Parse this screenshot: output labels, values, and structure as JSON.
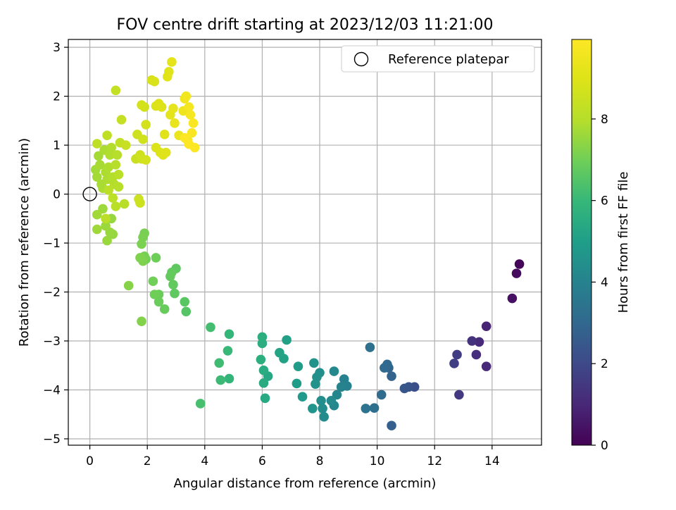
{
  "chart_data": {
    "type": "scatter",
    "title": "FOV centre drift starting at 2023/12/03 11:21:00",
    "xlabel": "Angular distance from reference (arcmin)",
    "ylabel": "Rotation from reference (arcmin)",
    "xlim": [
      -0.75,
      15.72
    ],
    "ylim": [
      -5.13,
      3.16
    ],
    "xticks": [
      "0",
      "2",
      "4",
      "6",
      "8",
      "10",
      "12",
      "14"
    ],
    "yticks": [
      "−5",
      "−4",
      "−3",
      "−2",
      "−1",
      "0",
      "1",
      "2",
      "3"
    ],
    "grid": true,
    "legend": {
      "position": "top-right",
      "entries": [
        "Reference platepar"
      ]
    },
    "reference_point": {
      "x": 0,
      "y": 0
    },
    "colorbar": {
      "label": "Hours from first FF file",
      "colormap": "viridis",
      "range": [
        0,
        9.95
      ],
      "ticks": [
        "0",
        "2",
        "4",
        "6",
        "8"
      ]
    },
    "points": [
      [
        14.95,
        -1.43,
        0.1
      ],
      [
        14.85,
        -1.62,
        0.25
      ],
      [
        14.7,
        -2.13,
        0.4
      ],
      [
        13.8,
        -2.7,
        0.9
      ],
      [
        13.8,
        -3.52,
        1.0
      ],
      [
        13.55,
        -3.02,
        1.1
      ],
      [
        13.45,
        -3.28,
        1.2
      ],
      [
        13.3,
        -3.0,
        1.3
      ],
      [
        12.85,
        -4.1,
        1.5
      ],
      [
        12.78,
        -3.28,
        1.6
      ],
      [
        12.68,
        -3.46,
        1.7
      ],
      [
        11.3,
        -3.94,
        2.2
      ],
      [
        11.1,
        -3.94,
        2.3
      ],
      [
        10.95,
        -3.97,
        2.4
      ],
      [
        10.5,
        -4.73,
        2.7
      ],
      [
        10.5,
        -3.72,
        2.8
      ],
      [
        10.4,
        -3.55,
        2.9
      ],
      [
        10.35,
        -3.48,
        3.0
      ],
      [
        10.25,
        -3.55,
        3.05
      ],
      [
        10.15,
        -4.1,
        3.15
      ],
      [
        9.9,
        -4.37,
        3.25
      ],
      [
        9.75,
        -3.13,
        3.3
      ],
      [
        9.6,
        -4.38,
        3.35
      ],
      [
        8.95,
        -3.92,
        3.9
      ],
      [
        8.85,
        -3.78,
        3.95
      ],
      [
        8.75,
        -3.94,
        4.0
      ],
      [
        8.6,
        -4.1,
        4.1
      ],
      [
        8.5,
        -4.32,
        4.15
      ],
      [
        8.5,
        -3.62,
        4.2
      ],
      [
        8.4,
        -4.22,
        4.25
      ],
      [
        8.15,
        -4.55,
        4.3
      ],
      [
        8.1,
        -4.38,
        4.35
      ],
      [
        8.05,
        -4.22,
        4.4
      ],
      [
        8.0,
        -3.65,
        4.45
      ],
      [
        7.9,
        -3.74,
        4.5
      ],
      [
        7.85,
        -3.88,
        4.55
      ],
      [
        7.8,
        -3.45,
        4.6
      ],
      [
        7.75,
        -4.38,
        4.65
      ],
      [
        7.4,
        -4.14,
        4.85
      ],
      [
        7.25,
        -3.52,
        4.9
      ],
      [
        7.2,
        -3.87,
        4.95
      ],
      [
        6.85,
        -2.98,
        5.1
      ],
      [
        6.75,
        -3.36,
        5.15
      ],
      [
        6.6,
        -3.24,
        5.2
      ],
      [
        6.2,
        -3.72,
        5.35
      ],
      [
        6.1,
        -4.17,
        5.4
      ],
      [
        6.05,
        -3.86,
        5.45
      ],
      [
        6.05,
        -3.6,
        5.5
      ],
      [
        6.0,
        -3.05,
        5.55
      ],
      [
        6.0,
        -2.92,
        5.6
      ],
      [
        5.95,
        -3.38,
        5.62
      ],
      [
        4.85,
        -3.77,
        5.9
      ],
      [
        4.85,
        -2.86,
        5.95
      ],
      [
        4.8,
        -3.2,
        6.0
      ],
      [
        4.55,
        -3.8,
        6.1
      ],
      [
        4.5,
        -3.45,
        6.15
      ],
      [
        4.2,
        -2.72,
        6.25
      ],
      [
        3.85,
        -4.28,
        6.3
      ],
      [
        3.35,
        -2.4,
        6.55
      ],
      [
        3.3,
        -2.2,
        6.6
      ],
      [
        3.0,
        -1.52,
        6.7
      ],
      [
        2.95,
        -2.03,
        6.72
      ],
      [
        2.9,
        -1.85,
        6.75
      ],
      [
        2.85,
        -1.6,
        6.78
      ],
      [
        2.8,
        -1.68,
        6.8
      ],
      [
        2.6,
        -2.35,
        6.85
      ],
      [
        2.4,
        -2.2,
        6.9
      ],
      [
        2.4,
        -2.05,
        6.92
      ],
      [
        2.3,
        -1.3,
        6.95
      ],
      [
        2.25,
        -2.05,
        6.97
      ],
      [
        2.2,
        -1.78,
        7.0
      ],
      [
        1.95,
        -1.33,
        7.05
      ],
      [
        1.9,
        -1.27,
        7.08
      ],
      [
        1.9,
        -0.8,
        7.1
      ],
      [
        1.85,
        -0.88,
        7.12
      ],
      [
        1.8,
        -1.02,
        7.15
      ],
      [
        1.85,
        -1.37,
        7.17
      ],
      [
        1.75,
        -1.3,
        7.2
      ],
      [
        1.8,
        -2.6,
        7.25
      ],
      [
        1.35,
        -1.87,
        7.3
      ],
      [
        0.8,
        -0.82,
        7.5
      ],
      [
        0.75,
        -0.5,
        7.52
      ],
      [
        0.7,
        -0.78,
        7.55
      ],
      [
        0.6,
        -0.95,
        7.57
      ],
      [
        0.55,
        -0.65,
        7.6
      ],
      [
        0.45,
        -0.3,
        7.62
      ],
      [
        0.25,
        -0.72,
        7.65
      ],
      [
        0.25,
        -0.42,
        7.67
      ],
      [
        0.2,
        0.5,
        7.7
      ],
      [
        0.25,
        0.35,
        7.72
      ],
      [
        0.3,
        0.78,
        7.74
      ],
      [
        0.35,
        0.6,
        7.76
      ],
      [
        0.4,
        0.2,
        7.78
      ],
      [
        0.45,
        0.12,
        7.8
      ],
      [
        0.5,
        0.9,
        7.82
      ],
      [
        0.55,
        0.45,
        7.84
      ],
      [
        0.6,
        0.3,
        7.86
      ],
      [
        0.65,
        0.55,
        7.88
      ],
      [
        0.7,
        0.8,
        7.9
      ],
      [
        0.75,
        0.95,
        7.92
      ],
      [
        0.8,
        0.35,
        7.94
      ],
      [
        0.85,
        0.2,
        7.96
      ],
      [
        0.9,
        0.6,
        7.98
      ],
      [
        0.95,
        0.8,
        8.0
      ],
      [
        1.0,
        0.15,
        8.02
      ],
      [
        1.2,
        -0.2,
        8.04
      ],
      [
        0.9,
        -0.25,
        8.06
      ],
      [
        1.0,
        0.4,
        8.08
      ],
      [
        0.65,
        0.08,
        8.1
      ],
      [
        0.55,
        -0.5,
        8.12
      ],
      [
        0.8,
        -0.08,
        8.14
      ],
      [
        0.25,
        1.03,
        8.16
      ],
      [
        0.6,
        1.2,
        8.2
      ],
      [
        1.05,
        1.05,
        8.25
      ],
      [
        0.9,
        2.12,
        8.3
      ],
      [
        1.1,
        1.52,
        8.35
      ],
      [
        1.25,
        1.0,
        8.4
      ],
      [
        1.6,
        0.72,
        8.45
      ],
      [
        1.7,
        -0.1,
        8.5
      ],
      [
        1.75,
        -0.18,
        8.52
      ],
      [
        1.65,
        1.22,
        8.55
      ],
      [
        1.75,
        0.8,
        8.57
      ],
      [
        1.8,
        0.72,
        8.6
      ],
      [
        1.85,
        1.12,
        8.62
      ],
      [
        1.9,
        1.78,
        8.65
      ],
      [
        1.95,
        0.7,
        8.67
      ],
      [
        1.95,
        1.42,
        8.7
      ],
      [
        1.8,
        1.82,
        8.72
      ],
      [
        2.15,
        2.33,
        8.8
      ],
      [
        2.25,
        2.3,
        8.85
      ],
      [
        2.3,
        0.95,
        8.9
      ],
      [
        2.3,
        1.8,
        8.92
      ],
      [
        2.4,
        1.85,
        8.95
      ],
      [
        2.45,
        0.85,
        8.97
      ],
      [
        2.5,
        1.78,
        9.0
      ],
      [
        2.55,
        0.8,
        9.02
      ],
      [
        2.6,
        1.22,
        9.05
      ],
      [
        2.65,
        0.85,
        9.07
      ],
      [
        2.7,
        2.4,
        9.1
      ],
      [
        2.75,
        2.5,
        9.12
      ],
      [
        2.8,
        1.62,
        9.15
      ],
      [
        2.85,
        2.7,
        9.2
      ],
      [
        2.9,
        1.75,
        9.25
      ],
      [
        2.95,
        1.45,
        9.3
      ],
      [
        3.1,
        1.2,
        9.4
      ],
      [
        3.25,
        1.7,
        9.5
      ],
      [
        3.3,
        1.95,
        9.55
      ],
      [
        3.35,
        2.0,
        9.6
      ],
      [
        3.4,
        1.1,
        9.65
      ],
      [
        3.45,
        1.78,
        9.7
      ],
      [
        3.5,
        1.62,
        9.75
      ],
      [
        3.55,
        1.25,
        9.8
      ],
      [
        3.6,
        1.45,
        9.85
      ],
      [
        3.65,
        0.95,
        9.9
      ],
      [
        3.3,
        1.15,
        9.92
      ],
      [
        3.45,
        1.02,
        9.94
      ]
    ]
  }
}
